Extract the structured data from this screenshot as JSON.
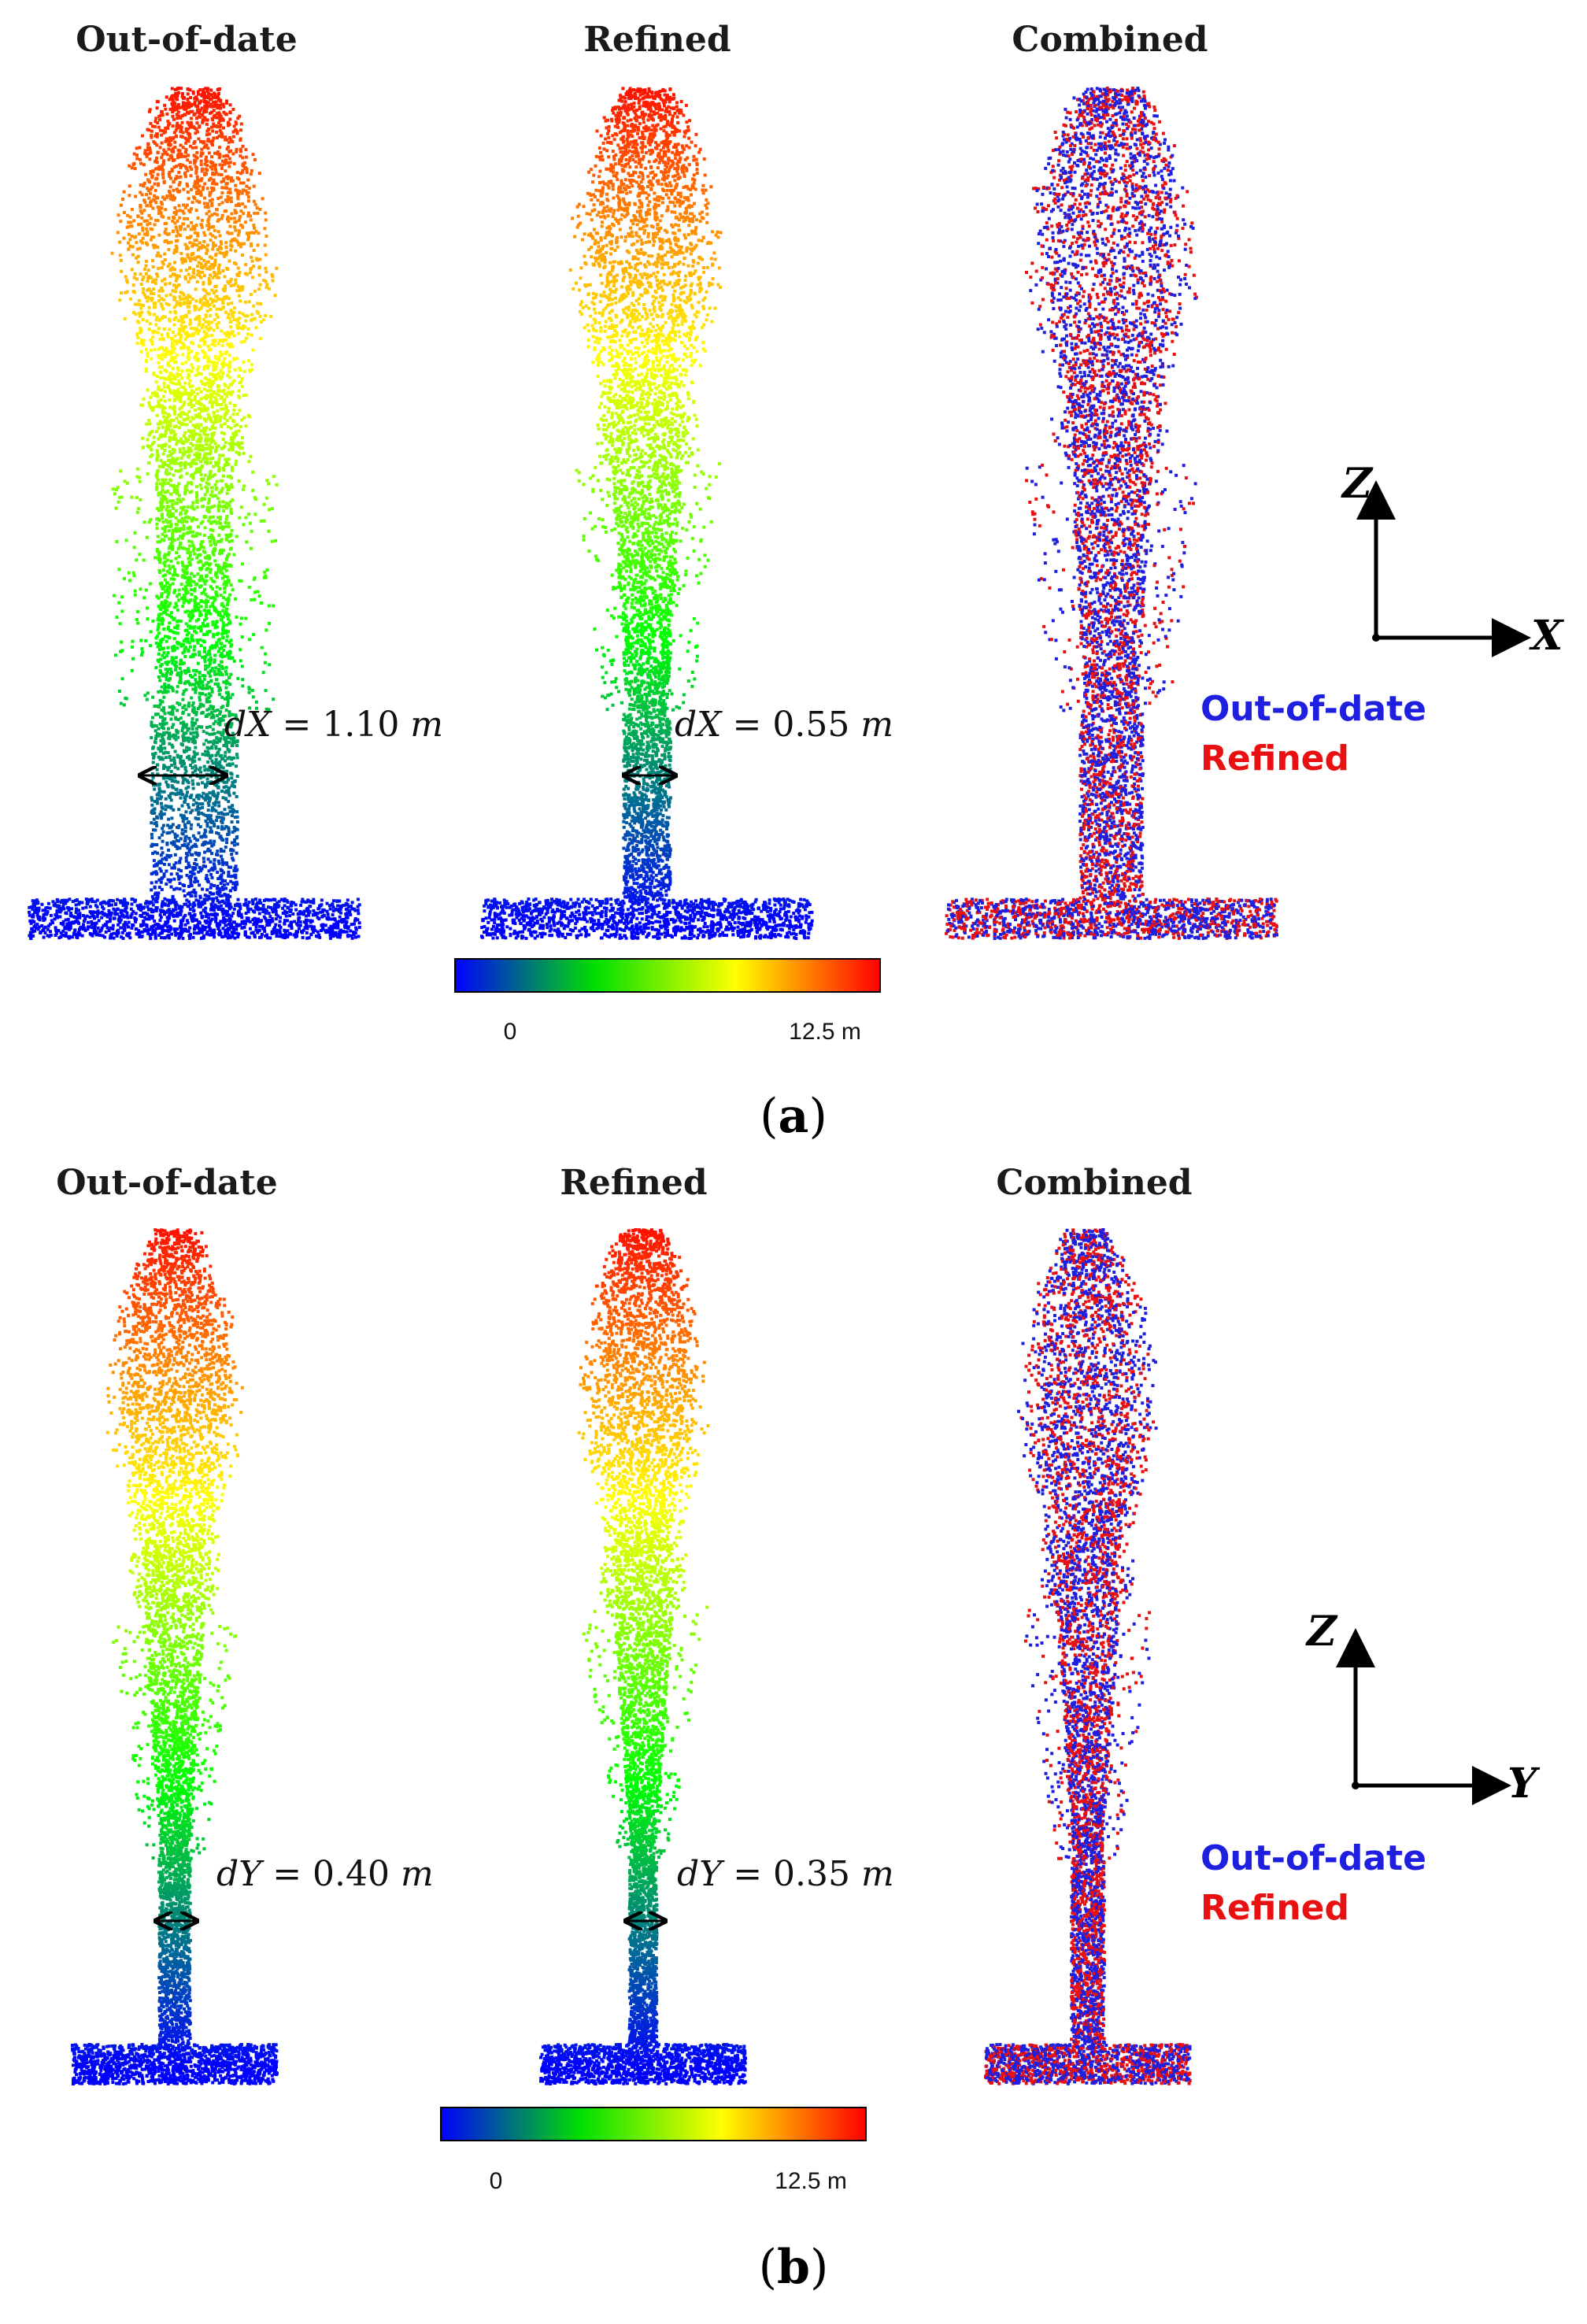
{
  "figure": {
    "panels": [
      {
        "id": "a",
        "caption_open": "(",
        "caption_letter": "a",
        "caption_close": ")",
        "titles": [
          "Out-of-date",
          "Refined",
          "Combined"
        ],
        "measurements": [
          {
            "pre": "dX",
            "eq": " = 1.10 ",
            "unit": "m"
          },
          {
            "pre": "dX",
            "eq": " = 0.55 ",
            "unit": "m"
          }
        ],
        "axis": {
          "vertical": "Z",
          "horizontal": "X"
        },
        "legend": [
          "Out-of-date",
          "Refined"
        ],
        "colorbar": {
          "min_label": "0",
          "max_label": "12.5 m"
        }
      },
      {
        "id": "b",
        "caption_open": "(",
        "caption_letter": "b",
        "caption_close": ")",
        "titles": [
          "Out-of-date",
          "Refined",
          "Combined"
        ],
        "measurements": [
          {
            "pre": "dY",
            "eq": " = 0.40 ",
            "unit": "m"
          },
          {
            "pre": "dY",
            "eq": " = 0.35 ",
            "unit": "m"
          }
        ],
        "axis": {
          "vertical": "Z",
          "horizontal": "Y"
        },
        "legend": [
          "Out-of-date",
          "Refined"
        ],
        "colorbar": {
          "min_label": "0",
          "max_label": "12.5 m"
        }
      }
    ],
    "colors": {
      "out_of_date": "#1f1fe0",
      "refined": "#e81010",
      "colormap": [
        "#0000ff",
        "#00ff00",
        "#ffff00",
        "#ff0000"
      ]
    }
  }
}
